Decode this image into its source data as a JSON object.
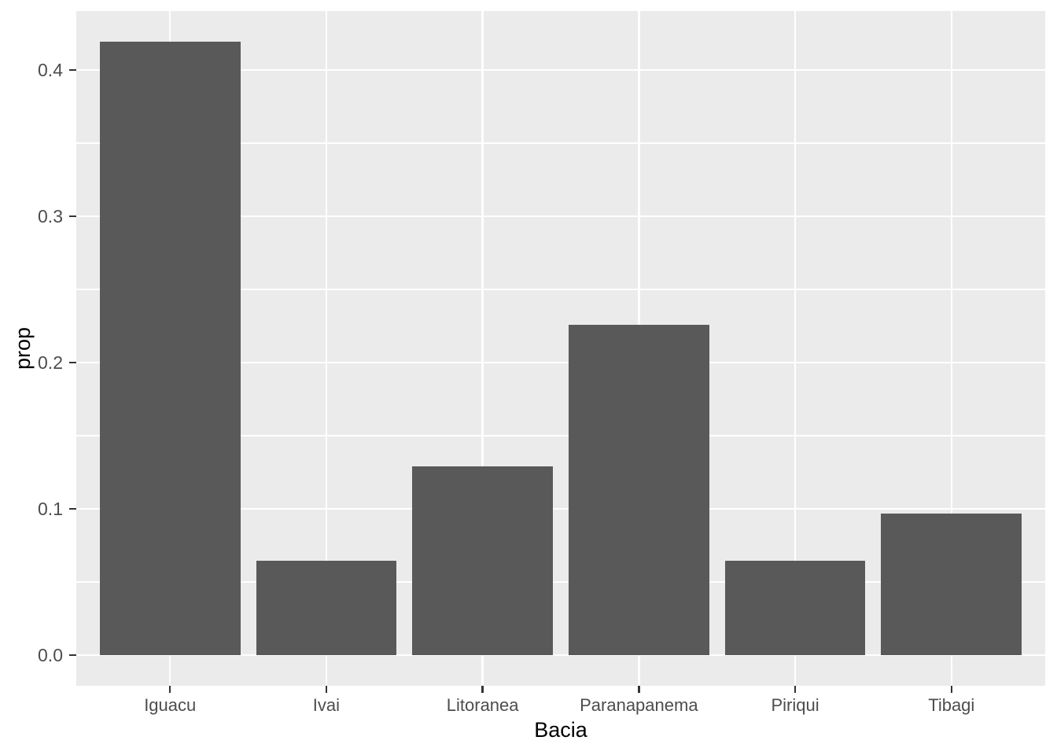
{
  "chart_data": {
    "type": "bar",
    "categories": [
      "Iguacu",
      "Ivai",
      "Litoranea",
      "Paranapanema",
      "Piriqui",
      "Tibagi"
    ],
    "values": [
      0.4194,
      0.0645,
      0.129,
      0.2258,
      0.0645,
      0.0968
    ],
    "title": "",
    "xlabel": "Bacia",
    "ylabel": "prop",
    "ylim": [
      0,
      0.44
    ],
    "yticks": [
      0.0,
      0.1,
      0.2,
      0.3,
      0.4
    ],
    "ytick_labels": [
      "0.0",
      "0.1",
      "0.2",
      "0.3",
      "0.4"
    ],
    "yticks_minor": [
      0.05,
      0.15,
      0.25,
      0.35
    ],
    "grid": "major and minor horizontal white lines, major vertical white lines at category centers",
    "legend_position": "none",
    "bar_width_fraction": 0.9,
    "colors": {
      "bar_fill": "#595959",
      "panel_background": "#EBEBEB",
      "gridline": "#FFFFFF",
      "tick_mark": "#333333",
      "tick_label": "#4D4D4D",
      "axis_title": "#000000",
      "figure_background": "#FFFFFF"
    }
  }
}
